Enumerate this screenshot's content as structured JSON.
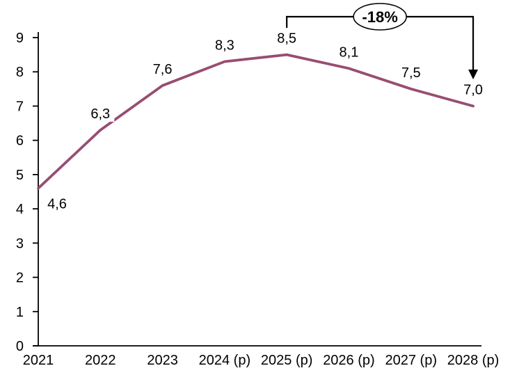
{
  "chart_data": {
    "type": "line",
    "title": "",
    "xlabel": "",
    "ylabel": "",
    "categories": [
      "2021",
      "2022",
      "2023",
      "2024 (p)",
      "2025 (p)",
      "2026 (p)",
      "2027 (p)",
      "2028 (p)"
    ],
    "series": [
      {
        "name": "series-1",
        "values": [
          4.6,
          6.3,
          7.6,
          8.3,
          8.5,
          8.1,
          7.5,
          7.0
        ],
        "value_labels": [
          "4,6",
          "6,3",
          "7,6",
          "8,3",
          "8,5",
          "8,1",
          "7,5",
          "7,0"
        ],
        "color": "#984D72"
      }
    ],
    "ylim": [
      0,
      9
    ],
    "ytick_labels": [
      "0",
      "1",
      "2",
      "3",
      "4",
      "5",
      "6",
      "7",
      "8",
      "9"
    ],
    "grid": false,
    "legend_position": "none",
    "axis_color": "#000000",
    "annotation": {
      "label": "-18%",
      "from_category": "2025 (p)",
      "to_category": "2028 (p)",
      "color": "#000000",
      "bubble_fill": "#ffffff"
    }
  }
}
